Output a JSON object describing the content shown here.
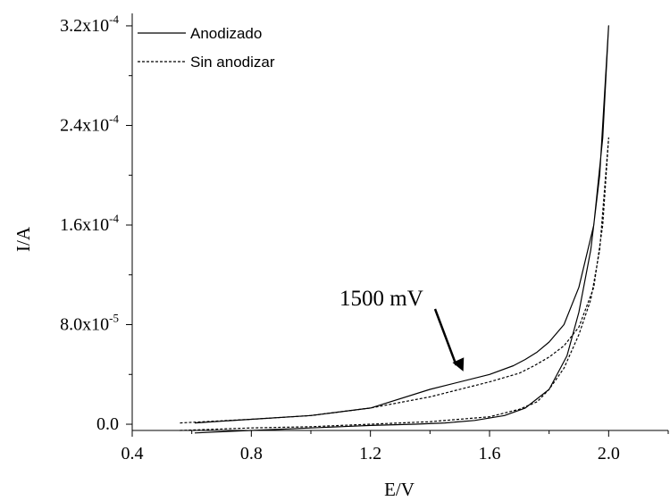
{
  "chart_data": {
    "type": "line",
    "xlabel": "E/V",
    "ylabel": "I/A",
    "xlim": [
      0.4,
      2.2
    ],
    "ylim": [
      -5e-06,
      0.00033
    ],
    "xticks": [
      {
        "value": 0.4,
        "label": "0.4"
      },
      {
        "value": 0.8,
        "label": "0.8"
      },
      {
        "value": 1.2,
        "label": "1.2"
      },
      {
        "value": 1.6,
        "label": "1.6"
      },
      {
        "value": 2.0,
        "label": "2.0"
      }
    ],
    "yticks": [
      {
        "value": 0.0,
        "mantissa": "0.0",
        "exp": ""
      },
      {
        "value": 8e-05,
        "mantissa": "8.0x10",
        "exp": "-5"
      },
      {
        "value": 0.00016,
        "mantissa": "1.6x10",
        "exp": "-4"
      },
      {
        "value": 0.00024,
        "mantissa": "2.4x10",
        "exp": "-4"
      },
      {
        "value": 0.00032,
        "mantissa": "3.2x10",
        "exp": "-4"
      }
    ],
    "grid": false,
    "legend_position": "top-left",
    "series": [
      {
        "name": "Anodizado",
        "style": "solid",
        "x": [
          0.61,
          0.8,
          1.0,
          1.2,
          1.35,
          1.45,
          1.55,
          1.65,
          1.72,
          1.8,
          1.86,
          1.9,
          1.94,
          1.97,
          2.0,
          1.98,
          1.95,
          1.9,
          1.85,
          1.8,
          1.76,
          1.72,
          1.68,
          1.6,
          1.4,
          1.2,
          1.0,
          0.8,
          0.61
        ],
        "y": [
          -7e-06,
          -5e-06,
          -3e-06,
          -1e-06,
          0.0,
          1e-06,
          3e-06,
          7e-06,
          1.3e-05,
          2.8e-05,
          5.5e-05,
          9e-05,
          0.00014,
          0.0002,
          0.00032,
          0.00023,
          0.00016,
          0.00011,
          8e-05,
          6.6e-05,
          5.8e-05,
          5.2e-05,
          4.7e-05,
          4e-05,
          2.8e-05,
          1.3e-05,
          7e-06,
          4e-06,
          1e-06
        ]
      },
      {
        "name": "Sin anodizar",
        "style": "dotted",
        "x": [
          0.56,
          0.8,
          1.0,
          1.2,
          1.4,
          1.6,
          1.7,
          1.76,
          1.8,
          1.85,
          1.9,
          1.94,
          1.97,
          2.0,
          1.98,
          1.95,
          1.9,
          1.85,
          1.8,
          1.75,
          1.7,
          1.6,
          1.4,
          1.2,
          1.0,
          0.8,
          0.56
        ],
        "y": [
          -5e-06,
          -3e-06,
          -2e-06,
          0.0,
          2e-06,
          6e-06,
          1.2e-05,
          1.8e-05,
          2.8e-05,
          4.5e-05,
          7.2e-05,
          0.0001,
          0.00014,
          0.00023,
          0.00016,
          0.00011,
          7.8e-05,
          6.3e-05,
          5.4e-05,
          4.7e-05,
          4.1e-05,
          3.4e-05,
          2.2e-05,
          1.3e-05,
          7e-06,
          4e-06,
          1e-06
        ]
      }
    ],
    "annotations": [
      {
        "text": "1500 mV",
        "x": 1.5,
        "y": 4.1e-05
      }
    ]
  }
}
